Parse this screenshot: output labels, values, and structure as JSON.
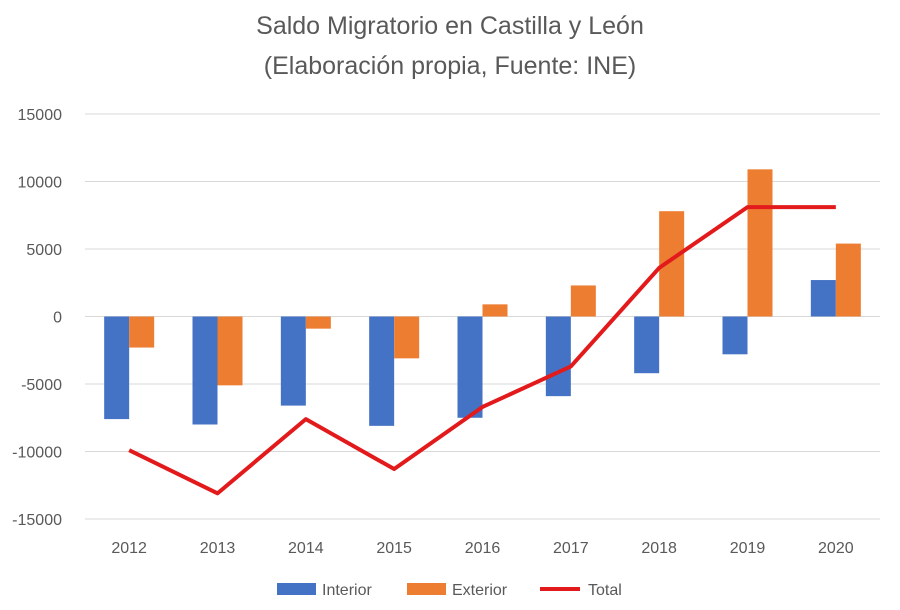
{
  "chart_data": {
    "type": "bar",
    "title": "Saldo Migratorio en Castilla y León",
    "subtitle": "(Elaboración propia, Fuente: INE)",
    "categories": [
      "2012",
      "2013",
      "2014",
      "2015",
      "2016",
      "2017",
      "2018",
      "2019",
      "2020"
    ],
    "ylim": [
      -15000,
      15000
    ],
    "yticks": [
      15000,
      10000,
      5000,
      0,
      -5000,
      -10000,
      -15000
    ],
    "grid": true,
    "legend": "bottom",
    "series": [
      {
        "name": "Interior",
        "kind": "bar",
        "color": "#4472C4",
        "values": [
          -7600,
          -8000,
          -6600,
          -8100,
          -7500,
          -5900,
          -4200,
          -2800,
          2700
        ]
      },
      {
        "name": "Exterior",
        "kind": "bar",
        "color": "#ED7D31",
        "values": [
          -2300,
          -5100,
          -900,
          -3100,
          900,
          2300,
          7800,
          10900,
          5400
        ]
      },
      {
        "name": "Total",
        "kind": "line",
        "color": "#E31A1C",
        "values": [
          -9900,
          -13100,
          -7600,
          -11300,
          -6700,
          -3700,
          3600,
          8100,
          8100
        ]
      }
    ]
  }
}
